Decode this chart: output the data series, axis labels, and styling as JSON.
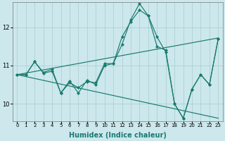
{
  "xlabel": "Humidex (Indice chaleur)",
  "ylabel": "",
  "background_color": "#cce8ec",
  "grid_color": "#a8cccc",
  "line_color": "#1a7a6e",
  "x_ticks": [
    0,
    1,
    2,
    3,
    4,
    5,
    6,
    7,
    8,
    9,
    10,
    11,
    12,
    13,
    14,
    15,
    16,
    17,
    18,
    19,
    20,
    21,
    22,
    23
  ],
  "y_ticks": [
    10,
    11,
    12
  ],
  "ylim": [
    9.55,
    12.65
  ],
  "xlim": [
    -0.5,
    23.5
  ],
  "series_jagged1": {
    "x": [
      0,
      1,
      2,
      3,
      4,
      5,
      6,
      7,
      8,
      9,
      10,
      11,
      12,
      13,
      14,
      15,
      16,
      17,
      18,
      19,
      20,
      21,
      22,
      23
    ],
    "y": [
      10.76,
      10.76,
      11.1,
      10.8,
      10.85,
      10.28,
      10.6,
      10.28,
      10.62,
      10.5,
      11.0,
      11.05,
      11.55,
      12.2,
      12.62,
      12.3,
      11.75,
      11.35,
      10.0,
      9.62,
      10.38,
      10.76,
      10.5,
      11.7
    ]
  },
  "series_jagged2": {
    "x": [
      0,
      1,
      2,
      3,
      4,
      5,
      6,
      7,
      8,
      9,
      10,
      11,
      12,
      13,
      14,
      15,
      16,
      17,
      18,
      19,
      20,
      21,
      22,
      23
    ],
    "y": [
      10.76,
      10.76,
      11.1,
      10.82,
      10.9,
      10.28,
      10.55,
      10.42,
      10.58,
      10.55,
      11.05,
      11.05,
      11.75,
      12.15,
      12.45,
      12.3,
      11.5,
      11.4,
      10.0,
      9.62,
      10.38,
      10.76,
      10.5,
      11.7
    ]
  },
  "trend_up": {
    "x": [
      0,
      23
    ],
    "y": [
      10.76,
      11.72
    ]
  },
  "trend_down": {
    "x": [
      0,
      23
    ],
    "y": [
      10.76,
      9.62
    ]
  },
  "marker": "D",
  "markersize": 2.2,
  "linewidth": 0.85
}
